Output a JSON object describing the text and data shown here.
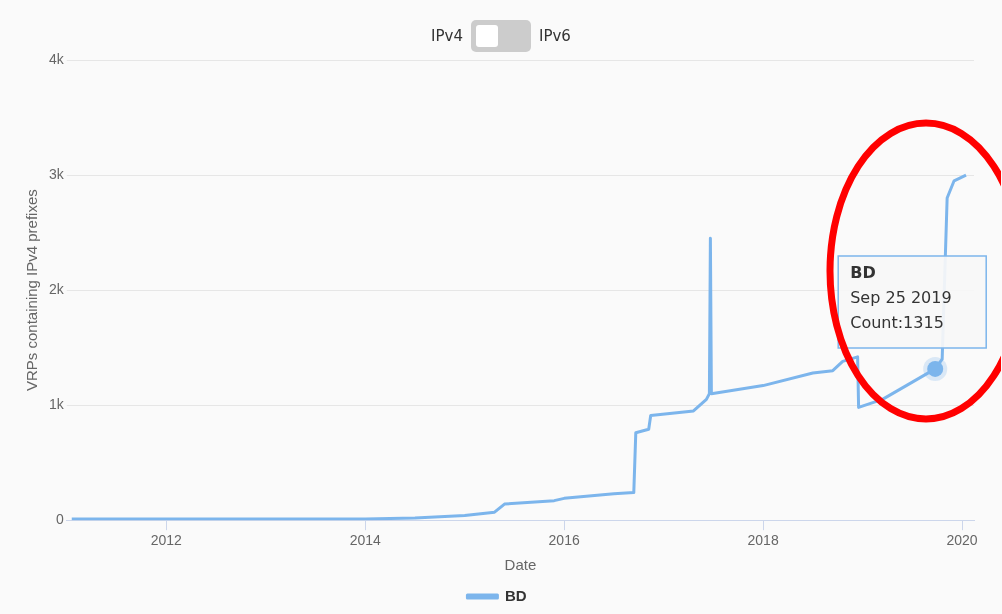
{
  "chart_data": {
    "type": "line",
    "xlabel": "Date",
    "ylabel": "VRPs containing IPv4 prefixes",
    "annotations": [
      "IPv4",
      "IPv6",
      {
        "text": "BD\nSep 25 2019\nCount:1315",
        "x": 2019.73,
        "y": 1315
      }
    ],
    "series": [
      {
        "name": "BD",
        "color": "#7cb5ec",
        "x": [
          2011.05,
          2014.0,
          2014.5,
          2015.0,
          2015.3,
          2015.4,
          2015.9,
          2016.0,
          2016.5,
          2016.7,
          2016.72,
          2016.85,
          2016.87,
          2017.3,
          2017.43,
          2017.46,
          2017.47,
          2017.48,
          2018.0,
          2018.5,
          2018.7,
          2018.8,
          2018.95,
          2018.96,
          2019.2,
          2019.5,
          2019.73,
          2019.8,
          2019.85,
          2019.92,
          2020.04
        ],
        "values": [
          10,
          10,
          20,
          40,
          70,
          140,
          170,
          190,
          230,
          240,
          760,
          790,
          910,
          950,
          1050,
          1100,
          2450,
          1100,
          1170,
          1280,
          1300,
          1380,
          1420,
          980,
          1050,
          1200,
          1315,
          1400,
          2800,
          2950,
          3000
        ]
      }
    ],
    "xlim": [
      2011.0,
      2020.12
    ],
    "xticks": [
      2012,
      2014,
      2016,
      2018,
      2020
    ],
    "ylim": [
      0,
      4000
    ],
    "yticks": [
      0,
      {
        "value": 1000,
        "label": "1k"
      },
      {
        "value": 2000,
        "label": "2k"
      },
      {
        "value": 3000,
        "label": "3k"
      },
      {
        "value": 4000,
        "label": "4k"
      }
    ],
    "grid": "y",
    "legend": "bottom",
    "marker": "none",
    "line_style": "solid"
  }
}
